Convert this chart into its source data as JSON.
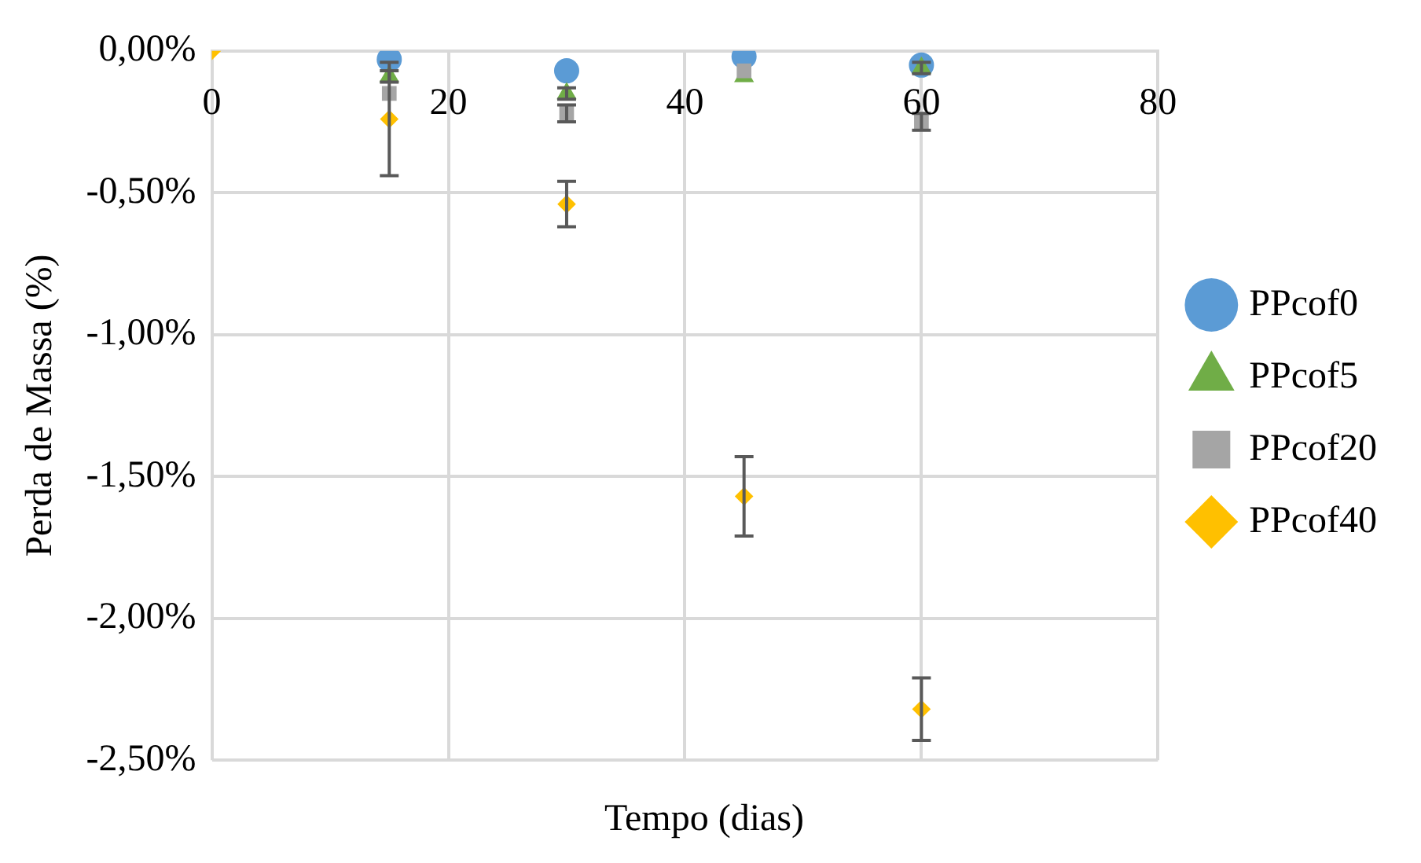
{
  "chart_data": {
    "type": "scatter",
    "xlabel": "Tempo (dias)",
    "ylabel": "Perda de Massa (%)",
    "xlim": [
      0,
      80
    ],
    "xticks": [
      0,
      20,
      40,
      60,
      80
    ],
    "ylim": [
      -2.5,
      0
    ],
    "yticks": [
      {
        "value": -2.5,
        "label": "-2,50%"
      },
      {
        "value": -2,
        "label": "-2,00%"
      },
      {
        "value": -1.5,
        "label": "-1,50%"
      },
      {
        "value": -1,
        "label": "-1,00%"
      },
      {
        "value": -0.5,
        "label": "-0,50%"
      },
      {
        "value": 0,
        "label": "0,00%"
      }
    ],
    "grid": true,
    "legend": "right",
    "x": [
      0,
      15,
      30,
      45,
      60
    ],
    "series": [
      {
        "name": "PPcof0",
        "color": "#5b9bd5",
        "marker": "circle",
        "values": [
          null,
          -0.03,
          -0.07,
          -0.02,
          -0.05
        ]
      },
      {
        "name": "PPcof5",
        "color": "#70ad47",
        "marker": "triangle",
        "values": [
          null,
          -0.09,
          -0.15,
          -0.09,
          -0.06
        ],
        "errors": [
          null,
          0.02,
          0.02,
          null,
          0.02
        ]
      },
      {
        "name": "PPcof20",
        "color": "#a5a5a5",
        "marker": "square",
        "values": [
          null,
          -0.15,
          -0.22,
          -0.07,
          -0.25
        ],
        "errors": [
          null,
          null,
          0.03,
          null,
          0.03
        ]
      },
      {
        "name": "PPcof40",
        "color": "#ffc000",
        "marker": "diamond",
        "values": [
          0,
          -0.24,
          -0.54,
          -1.57,
          -2.32
        ],
        "errors": [
          null,
          0.2,
          0.08,
          0.14,
          0.11
        ]
      }
    ]
  }
}
